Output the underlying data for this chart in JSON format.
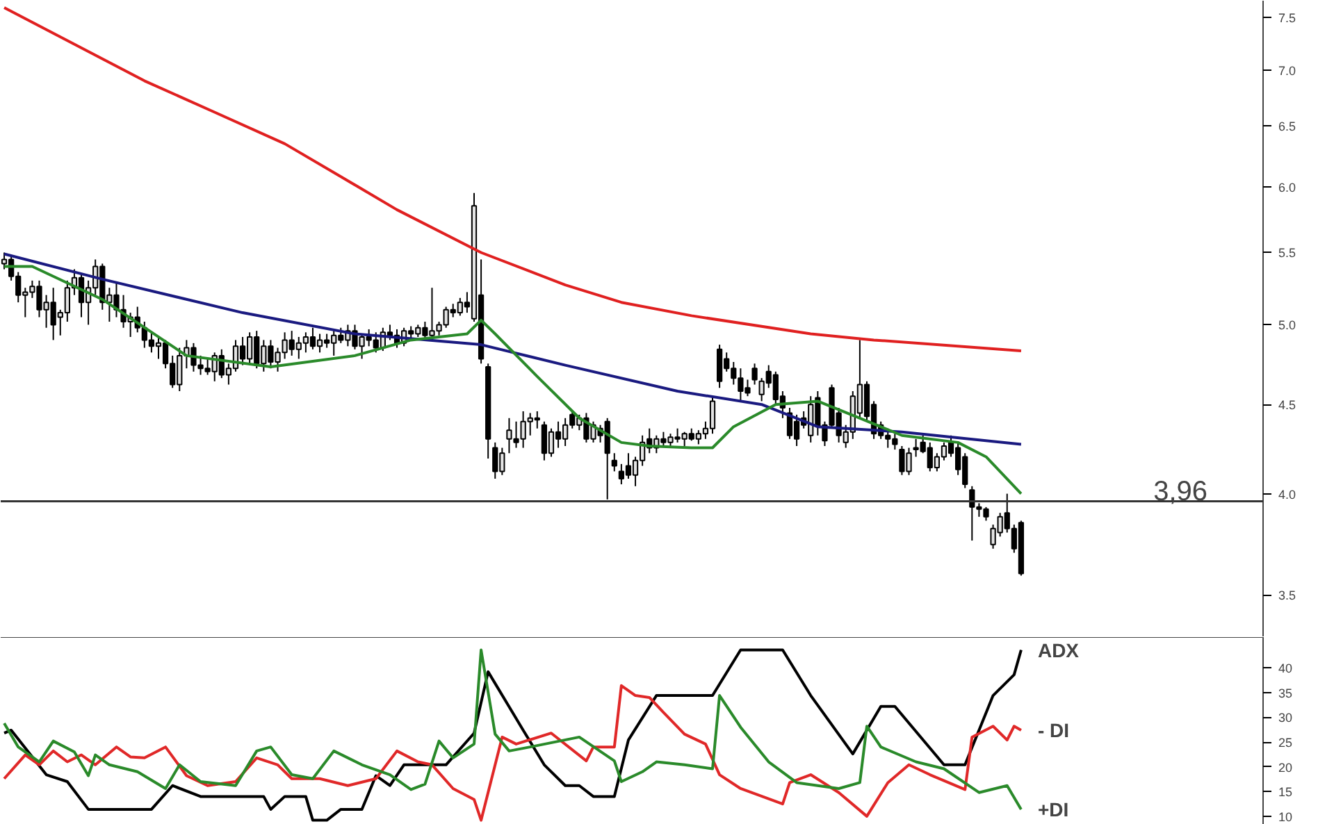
{
  "chart_data": [
    {
      "type": "candlestick",
      "log": true,
      "grid": false,
      "tick_labels": "y",
      "ylim": [
        3.31,
        7.67
      ],
      "yticks": [
        {
          "value": 3.5,
          "label": "3.5"
        },
        {
          "value": 4,
          "label": "4.0"
        },
        {
          "value": 4.5,
          "label": "4.5"
        },
        {
          "value": 5,
          "label": "5.0"
        },
        {
          "value": 5.5,
          "label": "5.5"
        },
        {
          "value": 6,
          "label": "6.0"
        },
        {
          "value": 6.5,
          "label": "6.5"
        },
        {
          "value": 7,
          "label": "7.0"
        },
        {
          "value": 7.5,
          "label": "7.5"
        }
      ],
      "categories": [
        null,
        null,
        null,
        null,
        null,
        null,
        null,
        null,
        null,
        null,
        null,
        null,
        null,
        null,
        null,
        null,
        null,
        null,
        null,
        null,
        null,
        null,
        null,
        null,
        null,
        null,
        null,
        null,
        null,
        null,
        null,
        null,
        null,
        null,
        null,
        null,
        null,
        null,
        null,
        null,
        null,
        null,
        null,
        null,
        null,
        null,
        null,
        null,
        null,
        null,
        null,
        null,
        null,
        null,
        null,
        null,
        null,
        null,
        null,
        null,
        null,
        null,
        null,
        null,
        null,
        null,
        null,
        null,
        null,
        null,
        null,
        null,
        null,
        null,
        null,
        null,
        null,
        null,
        null,
        null,
        null,
        null,
        null,
        null,
        null,
        null,
        null,
        null,
        null,
        null,
        null,
        null,
        null,
        null,
        null,
        null,
        null,
        null,
        null,
        null,
        null,
        null,
        null,
        null,
        null,
        null,
        null,
        null,
        null,
        null,
        null,
        null,
        null,
        null,
        null,
        null,
        null,
        null,
        null,
        null,
        null,
        null,
        null,
        null,
        null,
        null,
        null,
        null,
        null,
        null,
        null,
        null,
        null,
        null,
        null,
        null,
        null,
        null,
        null,
        null,
        null,
        null,
        null,
        null,
        null,
        null,
        null,
        null,
        null,
        null,
        null,
        null,
        null,
        null,
        null,
        null,
        null,
        null,
        null,
        null,
        null,
        null,
        null,
        null,
        null,
        null,
        null,
        null,
        null,
        null,
        null,
        null,
        null,
        null,
        null,
        null,
        null,
        null,
        null,
        null
      ],
      "ohlc": [
        [
          5.42,
          5.5,
          5.38,
          5.45
        ],
        [
          5.45,
          5.48,
          5.3,
          5.33
        ],
        [
          5.33,
          5.36,
          5.15,
          5.2
        ],
        [
          5.2,
          5.25,
          5.05,
          5.22
        ],
        [
          5.22,
          5.3,
          5.18,
          5.26
        ],
        [
          5.26,
          5.3,
          5.05,
          5.1
        ],
        [
          5.1,
          5.2,
          4.98,
          5.15
        ],
        [
          5.15,
          5.25,
          4.9,
          5.0
        ],
        [
          5.05,
          5.1,
          4.93,
          5.08
        ],
        [
          5.08,
          5.3,
          5.02,
          5.25
        ],
        [
          5.25,
          5.38,
          5.2,
          5.32
        ],
        [
          5.32,
          5.35,
          5.05,
          5.15
        ],
        [
          5.15,
          5.3,
          5.0,
          5.25
        ],
        [
          5.25,
          5.45,
          5.2,
          5.4
        ],
        [
          5.4,
          5.42,
          5.1,
          5.15
        ],
        [
          5.15,
          5.25,
          5.02,
          5.2
        ],
        [
          5.2,
          5.28,
          5.05,
          5.1
        ],
        [
          5.1,
          5.2,
          4.98,
          5.02
        ],
        [
          5.02,
          5.08,
          4.92,
          5.05
        ],
        [
          5.05,
          5.12,
          4.95,
          4.98
        ],
        [
          4.98,
          5.02,
          4.85,
          4.9
        ],
        [
          4.9,
          4.95,
          4.82,
          4.86
        ],
        [
          4.86,
          4.92,
          4.78,
          4.88
        ],
        [
          4.88,
          4.9,
          4.72,
          4.75
        ],
        [
          4.75,
          4.8,
          4.6,
          4.62
        ],
        [
          4.62,
          4.85,
          4.58,
          4.8
        ],
        [
          4.8,
          4.9,
          4.72,
          4.85
        ],
        [
          4.85,
          4.88,
          4.7,
          4.74
        ],
        [
          4.74,
          4.8,
          4.68,
          4.72
        ],
        [
          4.72,
          4.78,
          4.68,
          4.7
        ],
        [
          4.7,
          4.82,
          4.64,
          4.8
        ],
        [
          4.8,
          4.84,
          4.66,
          4.68
        ],
        [
          4.68,
          4.75,
          4.62,
          4.72
        ],
        [
          4.72,
          4.9,
          4.7,
          4.86
        ],
        [
          4.86,
          4.92,
          4.74,
          4.78
        ],
        [
          4.78,
          4.95,
          4.74,
          4.92
        ],
        [
          4.92,
          4.96,
          4.72,
          4.75
        ],
        [
          4.75,
          4.9,
          4.7,
          4.86
        ],
        [
          4.86,
          4.9,
          4.72,
          4.76
        ],
        [
          4.76,
          4.85,
          4.7,
          4.82
        ],
        [
          4.82,
          4.95,
          4.78,
          4.9
        ],
        [
          4.9,
          4.96,
          4.8,
          4.84
        ],
        [
          4.84,
          4.92,
          4.78,
          4.88
        ],
        [
          4.88,
          4.95,
          4.82,
          4.92
        ],
        [
          4.92,
          4.98,
          4.84,
          4.86
        ],
        [
          4.86,
          4.94,
          4.82,
          4.9
        ],
        [
          4.9,
          4.94,
          4.85,
          4.88
        ],
        [
          4.88,
          4.96,
          4.8,
          4.93
        ],
        [
          4.93,
          4.98,
          4.88,
          4.9
        ],
        [
          4.9,
          5.0,
          4.86,
          4.96
        ],
        [
          4.96,
          5.0,
          4.84,
          4.86
        ],
        [
          4.86,
          4.94,
          4.78,
          4.92
        ],
        [
          4.92,
          4.97,
          4.86,
          4.9
        ],
        [
          4.9,
          4.95,
          4.82,
          4.85
        ],
        [
          4.85,
          4.98,
          4.83,
          4.95
        ],
        [
          4.95,
          5.0,
          4.9,
          4.93
        ],
        [
          4.93,
          4.97,
          4.85,
          4.88
        ],
        [
          4.88,
          4.98,
          4.86,
          4.96
        ],
        [
          4.96,
          4.99,
          4.9,
          4.94
        ],
        [
          4.94,
          5.0,
          4.92,
          4.98
        ],
        [
          4.98,
          5.02,
          4.9,
          4.93
        ],
        [
          4.93,
          5.25,
          4.9,
          4.96
        ],
        [
          4.96,
          5.02,
          4.93,
          5.0
        ],
        [
          5.0,
          5.12,
          4.98,
          5.1
        ],
        [
          5.1,
          5.14,
          5.05,
          5.08
        ],
        [
          5.08,
          5.18,
          5.06,
          5.15
        ],
        [
          5.15,
          5.22,
          5.08,
          5.12
        ],
        [
          5.04,
          5.95,
          5.02,
          5.85
        ],
        [
          5.2,
          5.45,
          4.75,
          4.78
        ],
        [
          4.73,
          4.75,
          4.19,
          4.3
        ],
        [
          4.25,
          4.28,
          4.08,
          4.12
        ],
        [
          4.12,
          4.25,
          4.1,
          4.22
        ],
        [
          4.3,
          4.42,
          4.22,
          4.35
        ],
        [
          4.3,
          4.4,
          4.25,
          4.28
        ],
        [
          4.3,
          4.46,
          4.25,
          4.4
        ],
        [
          4.4,
          4.45,
          4.32,
          4.42
        ],
        [
          4.42,
          4.46,
          4.36,
          4.41
        ],
        [
          4.38,
          4.4,
          4.18,
          4.22
        ],
        [
          4.22,
          4.36,
          4.2,
          4.34
        ],
        [
          4.34,
          4.4,
          4.25,
          4.3
        ],
        [
          4.3,
          4.42,
          4.26,
          4.38
        ],
        [
          4.44,
          4.46,
          4.36,
          4.38
        ],
        [
          4.38,
          4.44,
          4.35,
          4.42
        ],
        [
          4.42,
          4.45,
          4.28,
          4.3
        ],
        [
          4.3,
          4.4,
          4.28,
          4.38
        ],
        [
          4.36,
          4.38,
          4.28,
          4.32
        ],
        [
          4.4,
          4.42,
          3.97,
          4.22
        ],
        [
          4.18,
          4.22,
          4.12,
          4.15
        ],
        [
          4.12,
          4.16,
          4.05,
          4.08
        ],
        [
          4.15,
          4.22,
          4.08,
          4.1
        ],
        [
          4.1,
          4.2,
          4.04,
          4.18
        ],
        [
          4.18,
          4.32,
          4.15,
          4.28
        ],
        [
          4.3,
          4.36,
          4.22,
          4.25
        ],
        [
          4.25,
          4.32,
          4.22,
          4.3
        ],
        [
          4.3,
          4.34,
          4.26,
          4.28
        ],
        [
          4.28,
          4.33,
          4.25,
          4.31
        ],
        [
          4.31,
          4.36,
          4.28,
          4.3
        ],
        [
          4.3,
          4.34,
          4.26,
          4.33
        ],
        [
          4.33,
          4.36,
          4.29,
          4.3
        ],
        [
          4.3,
          4.35,
          4.27,
          4.33
        ],
        [
          4.33,
          4.4,
          4.3,
          4.36
        ],
        [
          4.36,
          4.55,
          4.33,
          4.52
        ],
        [
          4.84,
          4.87,
          4.6,
          4.64
        ],
        [
          4.78,
          4.82,
          4.7,
          4.72
        ],
        [
          4.72,
          4.76,
          4.62,
          4.66
        ],
        [
          4.66,
          4.72,
          4.52,
          4.58
        ],
        [
          4.6,
          4.65,
          4.55,
          4.57
        ],
        [
          4.72,
          4.75,
          4.62,
          4.65
        ],
        [
          4.56,
          4.66,
          4.52,
          4.64
        ],
        [
          4.7,
          4.74,
          4.6,
          4.63
        ],
        [
          4.68,
          4.7,
          4.5,
          4.53
        ],
        [
          4.55,
          4.58,
          4.42,
          4.48
        ],
        [
          4.45,
          4.48,
          4.3,
          4.32
        ],
        [
          4.4,
          4.44,
          4.26,
          4.3
        ],
        [
          4.42,
          4.46,
          4.36,
          4.38
        ],
        [
          4.32,
          4.55,
          4.28,
          4.5
        ],
        [
          4.54,
          4.58,
          4.32,
          4.37
        ],
        [
          4.38,
          4.4,
          4.26,
          4.29
        ],
        [
          4.6,
          4.62,
          4.36,
          4.38
        ],
        [
          4.45,
          4.48,
          4.28,
          4.32
        ],
        [
          4.28,
          4.38,
          4.25,
          4.34
        ],
        [
          4.34,
          4.58,
          4.3,
          4.55
        ],
        [
          4.45,
          4.9,
          4.42,
          4.62
        ],
        [
          4.62,
          4.64,
          4.4,
          4.43
        ],
        [
          4.5,
          4.52,
          4.3,
          4.33
        ],
        [
          4.38,
          4.4,
          4.3,
          4.32
        ],
        [
          4.32,
          4.36,
          4.25,
          4.3
        ],
        [
          4.3,
          4.33,
          4.24,
          4.27
        ],
        [
          4.24,
          4.26,
          4.1,
          4.12
        ],
        [
          4.12,
          4.25,
          4.1,
          4.22
        ],
        [
          4.25,
          4.3,
          4.2,
          4.24
        ],
        [
          4.28,
          4.32,
          4.22,
          4.23
        ],
        [
          4.25,
          4.28,
          4.12,
          4.14
        ],
        [
          4.14,
          4.22,
          4.12,
          4.2
        ],
        [
          4.2,
          4.28,
          4.18,
          4.26
        ],
        [
          4.28,
          4.32,
          4.2,
          4.22
        ],
        [
          4.25,
          4.28,
          4.1,
          4.13
        ],
        [
          4.2,
          4.22,
          4.03,
          4.05
        ],
        [
          4.02,
          4.04,
          3.76,
          3.93
        ],
        [
          3.93,
          3.95,
          3.88,
          3.92
        ],
        [
          3.92,
          3.93,
          3.86,
          3.88
        ],
        [
          3.74,
          3.84,
          3.72,
          3.82
        ],
        [
          3.8,
          3.9,
          3.78,
          3.88
        ],
        [
          3.9,
          4.0,
          3.8,
          3.82
        ],
        [
          3.82,
          3.84,
          3.7,
          3.72
        ],
        [
          3.85,
          3.86,
          3.59,
          3.6
        ],
        null,
        null,
        null,
        null,
        null,
        null,
        null,
        null,
        null,
        null,
        null,
        null,
        null,
        null,
        null,
        null,
        null,
        null,
        null,
        null,
        null,
        null,
        null,
        null,
        null,
        null,
        null,
        null,
        null,
        null,
        null,
        null,
        null,
        null
      ],
      "ref_lines": [
        {
          "axis": "y",
          "value": 3.96,
          "label": "3,96",
          "color": "#333333"
        }
      ],
      "series": [
        {
          "type": "line",
          "color": "#e02020",
          "values": [
            7.6,
            null,
            null,
            null,
            null,
            null,
            null,
            null,
            null,
            null,
            null,
            null,
            null,
            null,
            null,
            null,
            null,
            null,
            null,
            null,
            6.9,
            null,
            null,
            null,
            null,
            null,
            null,
            null,
            null,
            null,
            6.62,
            null,
            null,
            null,
            null,
            null,
            null,
            null,
            null,
            null,
            6.35,
            null,
            null,
            null,
            null,
            null,
            null,
            null,
            6.08,
            null,
            null,
            null,
            null,
            null,
            null,
            null,
            5.82,
            null,
            null,
            null,
            null,
            null,
            null,
            null,
            null,
            null,
            null,
            null,
            5.5,
            null,
            null,
            null,
            null,
            null,
            null,
            null,
            null,
            null,
            null,
            null,
            5.27,
            null,
            null,
            null,
            null,
            null,
            null,
            null,
            5.15,
            null,
            null,
            null,
            null,
            null,
            null,
            null,
            null,
            null,
            5.06,
            null,
            null,
            null,
            null,
            null,
            null,
            null,
            null,
            null,
            null,
            null,
            null,
            null,
            null,
            null,
            null,
            4.94,
            null,
            null,
            null,
            null,
            null,
            null,
            null,
            null,
            4.9,
            null,
            null,
            null,
            null,
            null,
            null,
            null,
            null,
            null,
            null,
            null,
            null,
            null,
            null,
            null,
            null,
            null,
            null,
            null,
            null,
            4.83,
            null,
            null,
            null,
            null,
            null,
            null,
            null,
            null,
            null,
            null,
            null,
            null,
            null,
            null,
            null,
            null,
            null,
            null,
            null,
            null,
            null,
            null,
            null,
            null,
            null,
            null,
            null,
            null,
            null,
            null,
            null,
            null,
            null,
            null
          ]
        },
        {
          "type": "line",
          "color": "#1a1a80",
          "values": [
            5.49,
            null,
            null,
            null,
            null,
            null,
            null,
            null,
            null,
            null,
            null,
            null,
            null,
            null,
            5.31,
            null,
            null,
            null,
            null,
            null,
            null,
            null,
            null,
            null,
            null,
            null,
            null,
            null,
            null,
            null,
            null,
            null,
            null,
            null,
            5.08,
            null,
            null,
            null,
            null,
            null,
            null,
            null,
            null,
            null,
            null,
            null,
            null,
            null,
            null,
            null,
            4.94,
            null,
            null,
            null,
            null,
            null,
            null,
            null,
            null,
            null,
            null,
            null,
            null,
            null,
            null,
            null,
            null,
            null,
            4.87,
            null,
            null,
            null,
            null,
            null,
            null,
            null,
            null,
            null,
            null,
            null,
            4.74,
            null,
            null,
            null,
            null,
            null,
            null,
            null,
            null,
            null,
            null,
            null,
            null,
            null,
            null,
            null,
            4.58,
            null,
            null,
            null,
            null,
            null,
            null,
            null,
            null,
            null,
            null,
            null,
            4.5,
            null,
            null,
            null,
            null,
            null,
            null,
            null,
            4.37,
            null,
            null,
            null,
            null,
            null,
            null,
            null,
            null,
            null,
            null,
            null,
            4.34,
            null,
            null,
            null,
            null,
            null,
            null,
            null,
            null,
            null,
            null,
            null,
            null,
            null,
            null,
            null,
            null,
            4.27,
            null,
            null,
            null,
            null,
            null,
            null,
            null,
            null,
            null,
            null,
            null,
            null,
            null,
            null,
            null,
            null,
            null,
            null,
            null,
            null,
            null,
            null,
            null,
            null,
            null,
            null,
            null,
            null,
            null,
            null,
            null,
            null,
            null,
            null
          ]
        },
        {
          "type": "line",
          "color": "#2a8a2a",
          "values": [
            5.4,
            null,
            null,
            null,
            5.4,
            null,
            null,
            null,
            null,
            null,
            null,
            null,
            null,
            null,
            5.17,
            null,
            null,
            null,
            null,
            null,
            null,
            null,
            null,
            null,
            null,
            null,
            4.8,
            null,
            null,
            null,
            null,
            null,
            null,
            null,
            null,
            null,
            null,
            null,
            4.73,
            null,
            null,
            null,
            null,
            null,
            null,
            null,
            null,
            null,
            null,
            null,
            4.8,
            null,
            null,
            null,
            null,
            null,
            null,
            null,
            4.9,
            null,
            null,
            null,
            null,
            null,
            null,
            null,
            4.94,
            null,
            5.03,
            null,
            4.94,
            null,
            null,
            null,
            null,
            null,
            4.67,
            null,
            null,
            null,
            null,
            null,
            4.42,
            null,
            null,
            null,
            null,
            null,
            4.28,
            null,
            null,
            null,
            4.26,
            null,
            null,
            null,
            null,
            null,
            4.25,
            null,
            null,
            4.25,
            null,
            null,
            4.37,
            null,
            null,
            null,
            null,
            null,
            4.5,
            null,
            null,
            null,
            null,
            null,
            4.52,
            null,
            null,
            null,
            null,
            null,
            4.42,
            null,
            null,
            null,
            null,
            null,
            4.32,
            null,
            null,
            null,
            null,
            null,
            null,
            null,
            4.28,
            null,
            null,
            null,
            4.2,
            null,
            null,
            null,
            null,
            4.0,
            null,
            null,
            null,
            null,
            null,
            null,
            null,
            null,
            null,
            null,
            null,
            null,
            null,
            null,
            null,
            null,
            null,
            null,
            null,
            null,
            null,
            null,
            null,
            null,
            null,
            null,
            null,
            null,
            null,
            null,
            null,
            null,
            null,
            null
          ]
        }
      ]
    },
    {
      "type": "line",
      "grid": false,
      "tick_labels": "y",
      "ylim": [
        8.3,
        46.2
      ],
      "yticks": [
        10,
        15,
        20,
        25,
        30,
        35,
        40
      ],
      "categories": [
        null,
        null,
        null,
        null,
        null,
        null,
        null,
        null,
        null,
        null,
        null,
        null,
        null,
        null,
        null,
        null,
        null,
        null,
        null,
        null,
        null,
        null,
        null,
        null,
        null,
        null,
        null,
        null,
        null,
        null,
        null,
        null,
        null,
        null,
        null,
        null,
        null,
        null,
        null,
        null,
        null,
        null,
        null,
        null,
        null,
        null,
        null,
        null,
        null,
        null,
        null,
        null,
        null,
        null,
        null,
        null,
        null,
        null,
        null,
        null,
        null,
        null,
        null,
        null,
        null,
        null,
        null,
        null,
        null,
        null,
        null,
        null,
        null,
        null,
        null,
        null,
        null,
        null,
        null,
        null,
        null,
        null,
        null,
        null,
        null,
        null,
        null,
        null,
        null,
        null,
        null,
        null,
        null,
        null,
        null,
        null,
        null,
        null,
        null,
        null,
        null,
        null,
        null,
        null,
        null,
        null,
        null,
        null,
        null,
        null,
        null,
        null,
        null,
        null,
        null,
        null,
        null,
        null,
        null,
        null,
        null,
        null,
        null,
        null,
        null,
        null,
        null,
        null,
        null,
        null,
        null,
        null,
        null,
        null,
        null,
        null,
        null,
        null,
        null,
        null,
        null,
        null,
        null,
        null,
        null,
        null,
        null,
        null,
        null,
        null,
        null,
        null,
        null,
        null,
        null,
        null,
        null,
        null,
        null,
        null,
        null,
        null,
        null,
        null,
        null,
        null,
        null,
        null,
        null,
        null,
        null,
        null,
        null,
        null,
        null,
        null,
        null,
        null,
        null,
        null
      ],
      "series": [
        {
          "name": "ADX",
          "color": "#000000",
          "values": [
            26.8,
            27.4,
            null,
            null,
            null,
            null,
            18.4,
            null,
            null,
            17,
            null,
            null,
            11.4,
            null,
            null,
            null,
            null,
            null,
            null,
            null,
            null,
            11.4,
            null,
            null,
            16.2,
            null,
            null,
            null,
            14,
            null,
            null,
            null,
            null,
            null,
            null,
            null,
            null,
            14,
            11.4,
            null,
            14,
            null,
            null,
            14,
            9.2,
            null,
            9.2,
            null,
            11.4,
            null,
            null,
            11.4,
            null,
            18.2,
            null,
            16.2,
            null,
            20.4,
            null,
            null,
            null,
            null,
            null,
            20.4,
            null,
            null,
            null,
            26.8,
            null,
            39.2,
            null,
            null,
            null,
            null,
            27.4,
            null,
            null,
            20.4,
            null,
            null,
            16.2,
            null,
            16.2,
            null,
            14,
            null,
            null,
            14,
            null,
            25.4,
            null,
            null,
            null,
            34.4,
            null,
            null,
            null,
            null,
            null,
            null,
            null,
            34.4,
            null,
            null,
            null,
            43.6,
            null,
            null,
            null,
            null,
            null,
            43.6,
            null,
            null,
            null,
            34.4,
            null,
            null,
            null,
            null,
            null,
            22.6,
            null,
            null,
            null,
            32.2,
            null,
            32.2,
            null,
            null,
            null,
            null,
            null,
            null,
            20.4,
            null,
            null,
            20.4,
            null,
            null,
            null,
            34.4,
            null,
            null,
            38.6,
            43.6,
            null,
            null,
            null,
            null,
            null,
            null,
            null,
            null,
            null,
            null,
            null,
            null,
            null,
            null,
            null,
            null,
            null,
            null,
            null,
            null,
            null,
            null,
            null,
            null,
            null,
            null,
            null,
            null,
            null,
            null,
            null,
            null,
            null,
            null
          ]
        },
        {
          "name": "- DI",
          "color": "#e02828",
          "values": [
            17.6,
            null,
            null,
            22.4,
            null,
            20.4,
            null,
            23.2,
            null,
            21,
            null,
            22.4,
            null,
            20.4,
            null,
            null,
            24,
            null,
            22,
            null,
            21.8,
            null,
            null,
            24,
            null,
            null,
            18.2,
            null,
            null,
            16.2,
            null,
            null,
            null,
            17,
            null,
            null,
            21.8,
            null,
            null,
            20.4,
            null,
            17.6,
            null,
            null,
            null,
            17.6,
            null,
            null,
            null,
            16.2,
            null,
            null,
            null,
            17.6,
            null,
            null,
            23.2,
            null,
            null,
            21,
            null,
            20.4,
            null,
            null,
            15.6,
            null,
            null,
            13.4,
            9.2,
            null,
            null,
            26,
            null,
            24.6,
            null,
            null,
            null,
            null,
            26.8,
            null,
            null,
            null,
            null,
            21.2,
            24,
            null,
            null,
            24,
            36.4,
            null,
            34.4,
            null,
            34,
            null,
            31,
            null,
            null,
            26.6,
            null,
            null,
            24.6,
            null,
            18.4,
            null,
            null,
            15.6,
            null,
            null,
            null,
            null,
            null,
            12.5,
            16.8,
            null,
            null,
            18.4,
            null,
            null,
            null,
            14.8,
            null,
            null,
            null,
            10,
            null,
            null,
            16.8,
            null,
            null,
            20.4,
            null,
            null,
            18.4,
            null,
            null,
            null,
            null,
            15.4,
            26,
            null,
            null,
            28.2,
            null,
            25.4,
            28.2,
            27.4,
            null,
            null,
            null,
            null,
            null,
            null,
            null,
            null,
            null,
            null,
            null,
            null,
            null,
            null,
            null,
            null,
            null,
            null,
            null,
            null,
            null,
            null,
            null,
            null,
            null,
            null,
            null,
            null,
            null,
            null,
            null,
            null,
            null,
            null
          ]
        },
        {
          "name": "+DI",
          "color": "#2a8a2a",
          "values": [
            28.8,
            null,
            24,
            null,
            null,
            21,
            null,
            25.2,
            null,
            null,
            23,
            null,
            18.2,
            22.4,
            null,
            20.4,
            null,
            null,
            null,
            19,
            null,
            null,
            null,
            15.6,
            null,
            20.4,
            null,
            null,
            17,
            null,
            null,
            null,
            null,
            16.2,
            null,
            null,
            23.2,
            null,
            24,
            null,
            null,
            18.4,
            null,
            null,
            17.6,
            null,
            null,
            23.2,
            null,
            null,
            null,
            20.4,
            null,
            null,
            null,
            18.4,
            null,
            null,
            15.4,
            null,
            16.5,
            null,
            25.2,
            null,
            21.8,
            null,
            null,
            24.6,
            43.6,
            null,
            26.6,
            null,
            23.2,
            null,
            null,
            24,
            null,
            null,
            null,
            null,
            null,
            null,
            26,
            null,
            null,
            null,
            null,
            21.2,
            17,
            null,
            null,
            19,
            null,
            21,
            null,
            null,
            null,
            20.4,
            null,
            null,
            null,
            19.6,
            34.4,
            null,
            null,
            28,
            null,
            null,
            null,
            21,
            null,
            null,
            null,
            16.8,
            null,
            null,
            null,
            null,
            null,
            15.6,
            null,
            null,
            16.8,
            28.2,
            null,
            24,
            null,
            null,
            null,
            null,
            21,
            null,
            null,
            null,
            19.6,
            null,
            null,
            null,
            null,
            14.8,
            null,
            null,
            null,
            16.2,
            null,
            11.4,
            null,
            null,
            null,
            null,
            null,
            null,
            null,
            null,
            null,
            null,
            null,
            null,
            null,
            null,
            null,
            null,
            null,
            null,
            null,
            null,
            null,
            null,
            null,
            null,
            null,
            null,
            null,
            null,
            null,
            null,
            null,
            null,
            null,
            null
          ]
        }
      ]
    }
  ]
}
